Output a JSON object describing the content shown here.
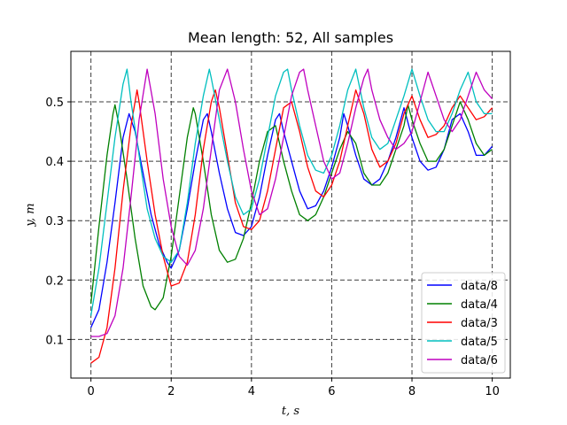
{
  "chart_data": {
    "type": "line",
    "title": "Mean length: 52, All samples",
    "xlabel": "t, s",
    "ylabel": "y, m",
    "xlim": [
      -0.5,
      10.45
    ],
    "ylim": [
      0.035,
      0.585
    ],
    "xticks": [
      0,
      2,
      4,
      6,
      8,
      10
    ],
    "yticks": [
      0.1,
      0.2,
      0.3,
      0.4,
      0.5
    ],
    "x_tick_labels": [
      "0",
      "2",
      "4",
      "6",
      "8",
      "10"
    ],
    "y_tick_labels": [
      "0.1",
      "0.2",
      "0.3",
      "0.4",
      "0.5"
    ],
    "grid": true,
    "grid_style": "dashed",
    "legend_position": "bottom-right",
    "series": [
      {
        "name": "data/8",
        "color": "#0000ff",
        "x": [
          0,
          0.2,
          0.4,
          0.6,
          0.8,
          0.95,
          1.1,
          1.3,
          1.5,
          1.7,
          1.9,
          2.0,
          2.2,
          2.4,
          2.6,
          2.8,
          2.9,
          3.0,
          3.2,
          3.4,
          3.6,
          3.8,
          4.0,
          4.2,
          4.4,
          4.6,
          4.7,
          4.8,
          5.0,
          5.2,
          5.4,
          5.6,
          5.8,
          6.0,
          6.2,
          6.3,
          6.4,
          6.6,
          6.8,
          7.0,
          7.2,
          7.4,
          7.6,
          7.8,
          8.0,
          8.2,
          8.4,
          8.6,
          8.8,
          9.0,
          9.2,
          9.4,
          9.6,
          9.8,
          10.0
        ],
        "y": [
          0.12,
          0.15,
          0.23,
          0.33,
          0.44,
          0.48,
          0.45,
          0.38,
          0.31,
          0.26,
          0.23,
          0.22,
          0.25,
          0.32,
          0.4,
          0.47,
          0.48,
          0.45,
          0.38,
          0.32,
          0.28,
          0.275,
          0.29,
          0.34,
          0.41,
          0.47,
          0.48,
          0.45,
          0.4,
          0.35,
          0.32,
          0.325,
          0.35,
          0.39,
          0.44,
          0.48,
          0.46,
          0.41,
          0.37,
          0.36,
          0.37,
          0.4,
          0.44,
          0.49,
          0.44,
          0.4,
          0.385,
          0.39,
          0.42,
          0.47,
          0.48,
          0.45,
          0.41,
          0.41,
          0.425
        ]
      },
      {
        "name": "data/4",
        "color": "#008000",
        "x": [
          0,
          0.2,
          0.4,
          0.55,
          0.6,
          0.7,
          0.9,
          1.1,
          1.3,
          1.5,
          1.6,
          1.8,
          2.0,
          2.2,
          2.4,
          2.55,
          2.6,
          2.8,
          3.0,
          3.2,
          3.4,
          3.6,
          3.8,
          4.0,
          4.2,
          4.4,
          4.6,
          4.8,
          5.0,
          5.2,
          5.4,
          5.6,
          5.8,
          6.0,
          6.2,
          6.4,
          6.6,
          6.8,
          7.0,
          7.2,
          7.4,
          7.6,
          7.8,
          7.9,
          8.0,
          8.2,
          8.4,
          8.6,
          8.8,
          9.0,
          9.2,
          9.4,
          9.6,
          9.8,
          10.0
        ],
        "y": [
          0.16,
          0.29,
          0.41,
          0.48,
          0.495,
          0.46,
          0.37,
          0.27,
          0.19,
          0.155,
          0.15,
          0.17,
          0.24,
          0.34,
          0.44,
          0.49,
          0.48,
          0.4,
          0.31,
          0.25,
          0.23,
          0.235,
          0.27,
          0.33,
          0.4,
          0.45,
          0.46,
          0.4,
          0.35,
          0.31,
          0.3,
          0.31,
          0.34,
          0.38,
          0.42,
          0.45,
          0.43,
          0.38,
          0.36,
          0.36,
          0.38,
          0.42,
          0.46,
          0.495,
          0.47,
          0.43,
          0.4,
          0.4,
          0.42,
          0.46,
          0.5,
          0.47,
          0.43,
          0.41,
          0.42
        ]
      },
      {
        "name": "data/3",
        "color": "#ff0000",
        "x": [
          0,
          0.2,
          0.4,
          0.6,
          0.8,
          1.0,
          1.15,
          1.2,
          1.4,
          1.6,
          1.8,
          2.0,
          2.2,
          2.4,
          2.6,
          2.8,
          3.0,
          3.1,
          3.2,
          3.4,
          3.6,
          3.8,
          4.0,
          4.2,
          4.4,
          4.6,
          4.8,
          5.0,
          5.2,
          5.4,
          5.6,
          5.8,
          6.0,
          6.2,
          6.4,
          6.6,
          6.8,
          7.0,
          7.2,
          7.4,
          7.6,
          7.8,
          8.0,
          8.2,
          8.4,
          8.6,
          8.8,
          9.0,
          9.2,
          9.4,
          9.6,
          9.8,
          10.0
        ],
        "y": [
          0.06,
          0.07,
          0.12,
          0.22,
          0.35,
          0.46,
          0.52,
          0.5,
          0.4,
          0.31,
          0.24,
          0.19,
          0.195,
          0.23,
          0.31,
          0.42,
          0.5,
          0.52,
          0.49,
          0.41,
          0.33,
          0.29,
          0.285,
          0.3,
          0.35,
          0.42,
          0.49,
          0.5,
          0.45,
          0.39,
          0.35,
          0.34,
          0.36,
          0.4,
          0.46,
          0.52,
          0.48,
          0.42,
          0.39,
          0.4,
          0.43,
          0.48,
          0.51,
          0.47,
          0.44,
          0.445,
          0.46,
          0.49,
          0.51,
          0.49,
          0.47,
          0.475,
          0.49
        ]
      },
      {
        "name": "data/5",
        "color": "#00bfbf",
        "x": [
          0,
          0.2,
          0.4,
          0.6,
          0.8,
          0.9,
          1.0,
          1.2,
          1.4,
          1.6,
          1.8,
          2.0,
          2.2,
          2.4,
          2.6,
          2.8,
          2.95,
          3.0,
          3.2,
          3.4,
          3.6,
          3.8,
          4.0,
          4.2,
          4.4,
          4.6,
          4.8,
          4.9,
          5.0,
          5.2,
          5.4,
          5.6,
          5.8,
          6.0,
          6.2,
          6.4,
          6.6,
          6.8,
          7.0,
          7.2,
          7.4,
          7.6,
          7.8,
          8.0,
          8.2,
          8.4,
          8.6,
          8.8,
          9.0,
          9.2,
          9.4,
          9.6,
          9.8,
          10.0
        ],
        "y": [
          0.14,
          0.22,
          0.33,
          0.44,
          0.53,
          0.555,
          0.5,
          0.41,
          0.32,
          0.27,
          0.24,
          0.23,
          0.25,
          0.33,
          0.43,
          0.51,
          0.555,
          0.54,
          0.47,
          0.4,
          0.34,
          0.31,
          0.32,
          0.37,
          0.44,
          0.51,
          0.55,
          0.555,
          0.52,
          0.46,
          0.41,
          0.385,
          0.38,
          0.41,
          0.46,
          0.52,
          0.555,
          0.49,
          0.44,
          0.42,
          0.43,
          0.47,
          0.51,
          0.555,
          0.51,
          0.47,
          0.45,
          0.45,
          0.48,
          0.52,
          0.55,
          0.5,
          0.48,
          0.48
        ]
      },
      {
        "name": "data/6",
        "color": "#bf00bf",
        "x": [
          0,
          0.2,
          0.4,
          0.6,
          0.8,
          1.0,
          1.2,
          1.4,
          1.6,
          1.8,
          2.0,
          2.2,
          2.4,
          2.6,
          2.8,
          3.0,
          3.2,
          3.4,
          3.6,
          3.8,
          4.0,
          4.2,
          4.4,
          4.6,
          4.8,
          5.0,
          5.2,
          5.3,
          5.4,
          5.6,
          5.8,
          6.0,
          6.2,
          6.4,
          6.6,
          6.8,
          6.9,
          7.0,
          7.2,
          7.4,
          7.6,
          7.8,
          8.0,
          8.2,
          8.4,
          8.6,
          8.8,
          9.0,
          9.2,
          9.4,
          9.6,
          9.8,
          10.0
        ],
        "y": [
          0.105,
          0.105,
          0.11,
          0.14,
          0.22,
          0.34,
          0.47,
          0.555,
          0.48,
          0.37,
          0.29,
          0.24,
          0.225,
          0.25,
          0.32,
          0.42,
          0.52,
          0.555,
          0.5,
          0.42,
          0.35,
          0.31,
          0.32,
          0.37,
          0.44,
          0.51,
          0.55,
          0.555,
          0.52,
          0.46,
          0.4,
          0.37,
          0.38,
          0.43,
          0.49,
          0.54,
          0.555,
          0.52,
          0.47,
          0.44,
          0.42,
          0.43,
          0.45,
          0.5,
          0.55,
          0.51,
          0.47,
          0.45,
          0.47,
          0.51,
          0.55,
          0.52,
          0.505
        ]
      }
    ]
  }
}
